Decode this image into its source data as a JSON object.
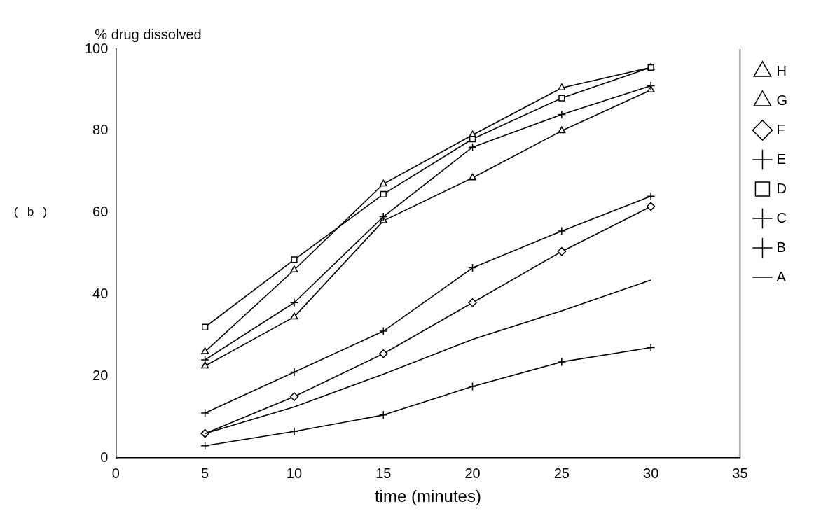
{
  "chart_data": {
    "type": "line",
    "ylabel": "% drug dissolved",
    "xlabel": "time (minutes)",
    "annotations": [
      "( b )"
    ],
    "x": [
      5,
      10,
      15,
      20,
      25,
      30
    ],
    "xlim": [
      0,
      35
    ],
    "xticks": [
      0,
      5,
      10,
      15,
      20,
      25,
      30,
      35
    ],
    "ylim": [
      0,
      100
    ],
    "yticks": [
      0,
      20,
      40,
      60,
      80,
      100
    ],
    "grid": false,
    "legend": "right",
    "series": [
      {
        "name": "H",
        "color": "#000000",
        "marker": "triangle",
        "values": [
          26,
          46,
          67,
          79,
          90.5,
          95.5
        ]
      },
      {
        "name": "G",
        "color": "#000000",
        "marker": "triangle",
        "values": [
          22.5,
          34.5,
          58,
          68.5,
          80,
          90
        ]
      },
      {
        "name": "F",
        "color": "#000000",
        "marker": "diamond",
        "values": [
          6,
          15,
          25.5,
          38,
          50.5,
          61.5
        ]
      },
      {
        "name": "E",
        "color": "#000000",
        "marker": "cross",
        "values": [
          3,
          6.5,
          10.5,
          17.5,
          23.5,
          27
        ]
      },
      {
        "name": "D",
        "color": "#000000",
        "marker": "square",
        "values": [
          32,
          48.5,
          64.5,
          78,
          88,
          95.5
        ]
      },
      {
        "name": "C",
        "color": "#000000",
        "marker": "cross",
        "values": [
          24,
          38,
          59,
          76,
          84,
          91
        ]
      },
      {
        "name": "B",
        "color": "#000000",
        "marker": "cross",
        "values": [
          11,
          21,
          31,
          46.5,
          55.5,
          64
        ]
      },
      {
        "name": "A",
        "color": "#000000",
        "marker": "none",
        "values": [
          6,
          12.5,
          20.5,
          29,
          36,
          43.5
        ]
      }
    ]
  }
}
